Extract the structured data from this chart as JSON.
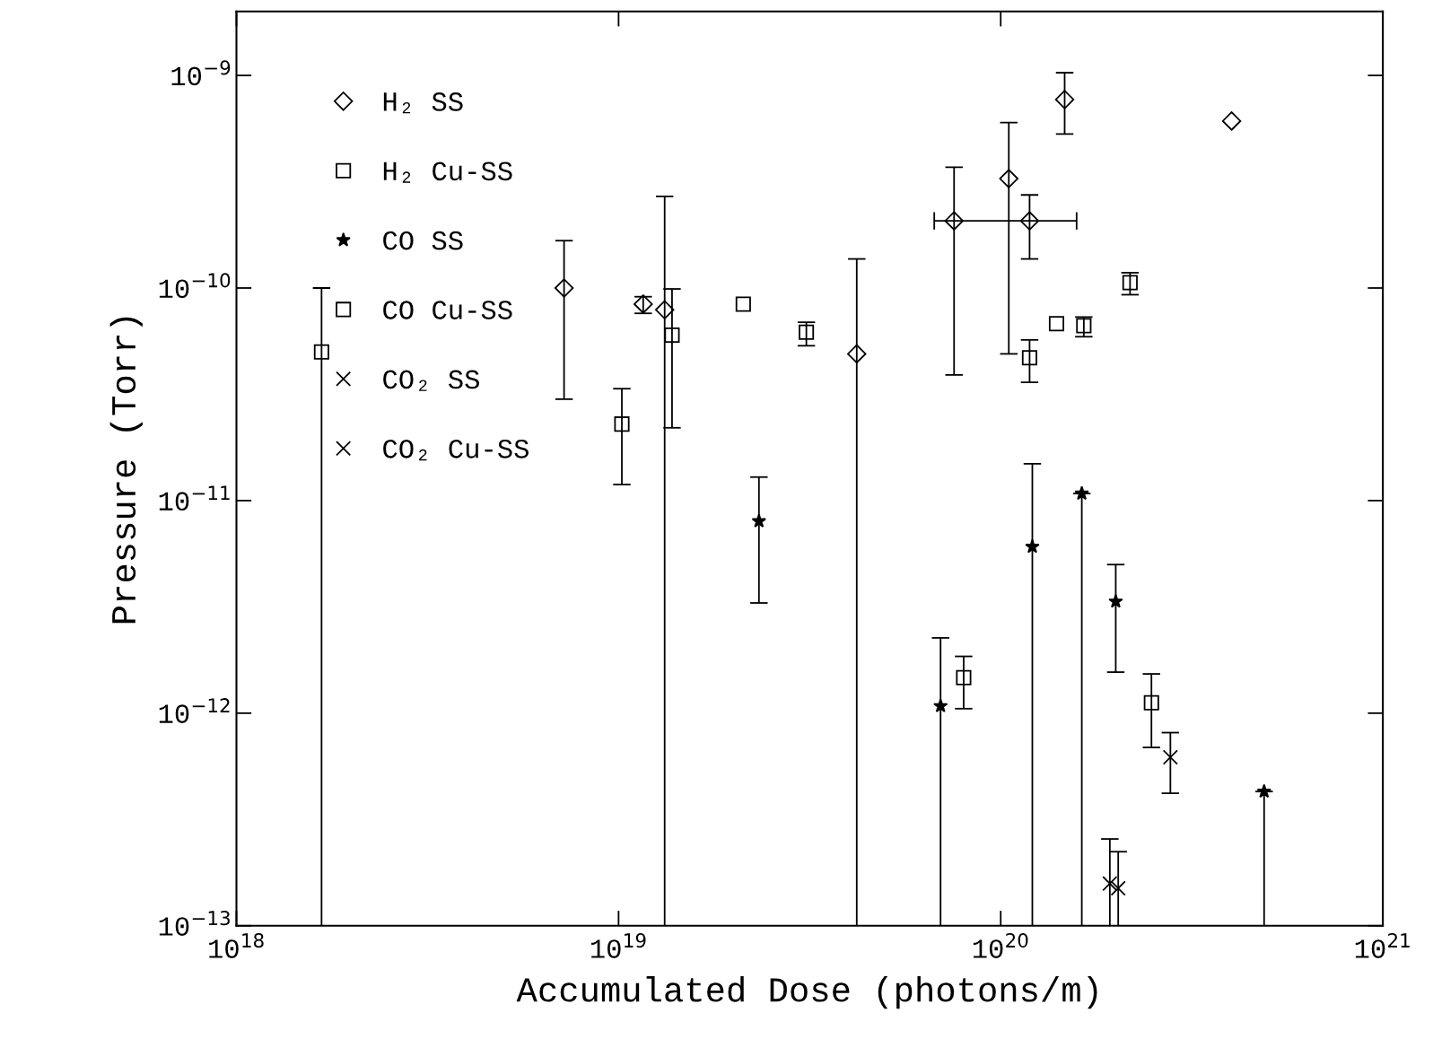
{
  "chart_data": {
    "type": "scatter",
    "xlabel": "Accumulated Dose (photons/m)",
    "ylabel": "Pressure (Torr)",
    "log": "xy",
    "xlim": [
      1e+18,
      1e+21
    ],
    "ylim": [
      1e-13,
      2e-09
    ],
    "xticks": [
      {
        "value": 1e+18,
        "label": "10$^{18}$"
      },
      {
        "value": 1e+19,
        "label": "10$^{19}$"
      },
      {
        "value": 1e+20,
        "label": "10$^{20}$"
      },
      {
        "value": 1e+21,
        "label": "10$^{21}$"
      }
    ],
    "yticks": [
      {
        "value": 1e-13,
        "label": "10$^{−13}$"
      },
      {
        "value": 1e-12,
        "label": "10$^{−12}$"
      },
      {
        "value": 1e-11,
        "label": "10$^{−11}$"
      },
      {
        "value": 1e-10,
        "label": "10$^{−10}$"
      },
      {
        "value": 1e-09,
        "label": "10$^{−9}$"
      }
    ],
    "grid": false,
    "legend": "top left",
    "series": [
      {
        "name": "H₂ SS",
        "color": "#000000",
        "marker": "diamond",
        "x": [
          7.2e+18,
          1.16e+19,
          1.32e+19,
          4.2e+19,
          7.55e+19,
          1.05e+20,
          1.19e+20,
          1.47e+20,
          4.02e+20
        ],
        "values": [
          1e-10,
          8.4e-11,
          7.9e-11,
          4.9e-11,
          2.07e-10,
          3.27e-10,
          2.07e-10,
          7.7e-10,
          6.1e-10
        ],
        "errors": [
          [
            3e-11,
            1.67e-10
          ],
          [
            7.6e-11,
            9.1e-11
          ],
          [
            1e-13,
            2.7e-10
          ],
          [
            1e-13,
            1.37e-10
          ],
          [
            3.9e-11,
            3.7e-10
          ],
          [
            4.9e-11,
            6e-10
          ],
          [
            1.37e-10,
            2.74e-10
          ],
          [
            5.3e-10,
            1.03e-09
          ],
          null
        ],
        "xerrors": [
          null,
          null,
          null,
          null,
          null,
          null,
          [
            6.7e+19,
            1.58e+20
          ],
          null,
          null
        ]
      },
      {
        "name": "H₂ Cu-SS",
        "color": "#000000",
        "marker": "square",
        "x": [
          1.67e+18,
          1.02e+19,
          1.38e+19,
          2.12e+19,
          3.1e+19,
          1.19e+20,
          1.4e+20,
          1.65e+20,
          2.18e+20
        ],
        "values": [
          5e-11,
          2.29e-11,
          6e-11,
          8.4e-11,
          6.2e-11,
          4.7e-11,
          6.8e-11,
          6.65e-11,
          1.06e-10
        ],
        "errors": [
          [
            1e-13,
            1e-10
          ],
          [
            1.19e-11,
            3.36e-11
          ],
          [
            2.2e-11,
            9.9e-11
          ],
          null,
          [
            5.35e-11,
            6.9e-11
          ],
          [
            3.6e-11,
            5.7e-11
          ],
          null,
          [
            5.9e-11,
            7.3e-11
          ],
          [
            9.3e-11,
            1.18e-10
          ]
        ]
      },
      {
        "name": "CO SS",
        "color": "#000000",
        "marker": "star",
        "x": [
          2.33e+19,
          6.96e+19,
          1.21e+20,
          1.63e+20,
          2e+20,
          4.89e+20
        ],
        "values": [
          8e-12,
          1.08e-12,
          6.07e-12,
          1.08e-11,
          3.35e-12,
          4.28e-13
        ],
        "errors": [
          [
            3.3e-12,
            1.29e-11
          ],
          [
            1e-13,
            2.26e-12
          ],
          [
            1e-13,
            1.49e-11
          ],
          [
            1e-13,
            1.08e-11
          ],
          [
            1.56e-12,
            5e-12
          ],
          [
            1e-13,
            4.28e-13
          ]
        ]
      },
      {
        "name": "CO Cu-SS",
        "color": "#000000",
        "marker": "square",
        "x": [
          8e+19,
          2.48e+20
        ],
        "values": [
          1.47e-12,
          1.12e-12
        ],
        "errors": [
          [
            1.05e-12,
            1.85e-12
          ],
          [
            6.9e-13,
            1.53e-12
          ]
        ]
      },
      {
        "name": "CO₂ SS",
        "color": "#000000",
        "marker": "cross",
        "x": [
          2.03e+20
        ],
        "values": [
          1.5e-13
        ],
        "errors": [
          [
            1e-13,
            2.23e-13
          ]
        ]
      },
      {
        "name": "CO₂ Cu-SS",
        "color": "#000000",
        "marker": "cross",
        "x": [
          1.93e+20,
          2.78e+20
        ],
        "values": [
          1.58e-13,
          6.2e-13
        ],
        "errors": [
          [
            1e-13,
            2.56e-13
          ],
          [
            4.2e-13,
            8.1e-13
          ]
        ]
      }
    ]
  }
}
